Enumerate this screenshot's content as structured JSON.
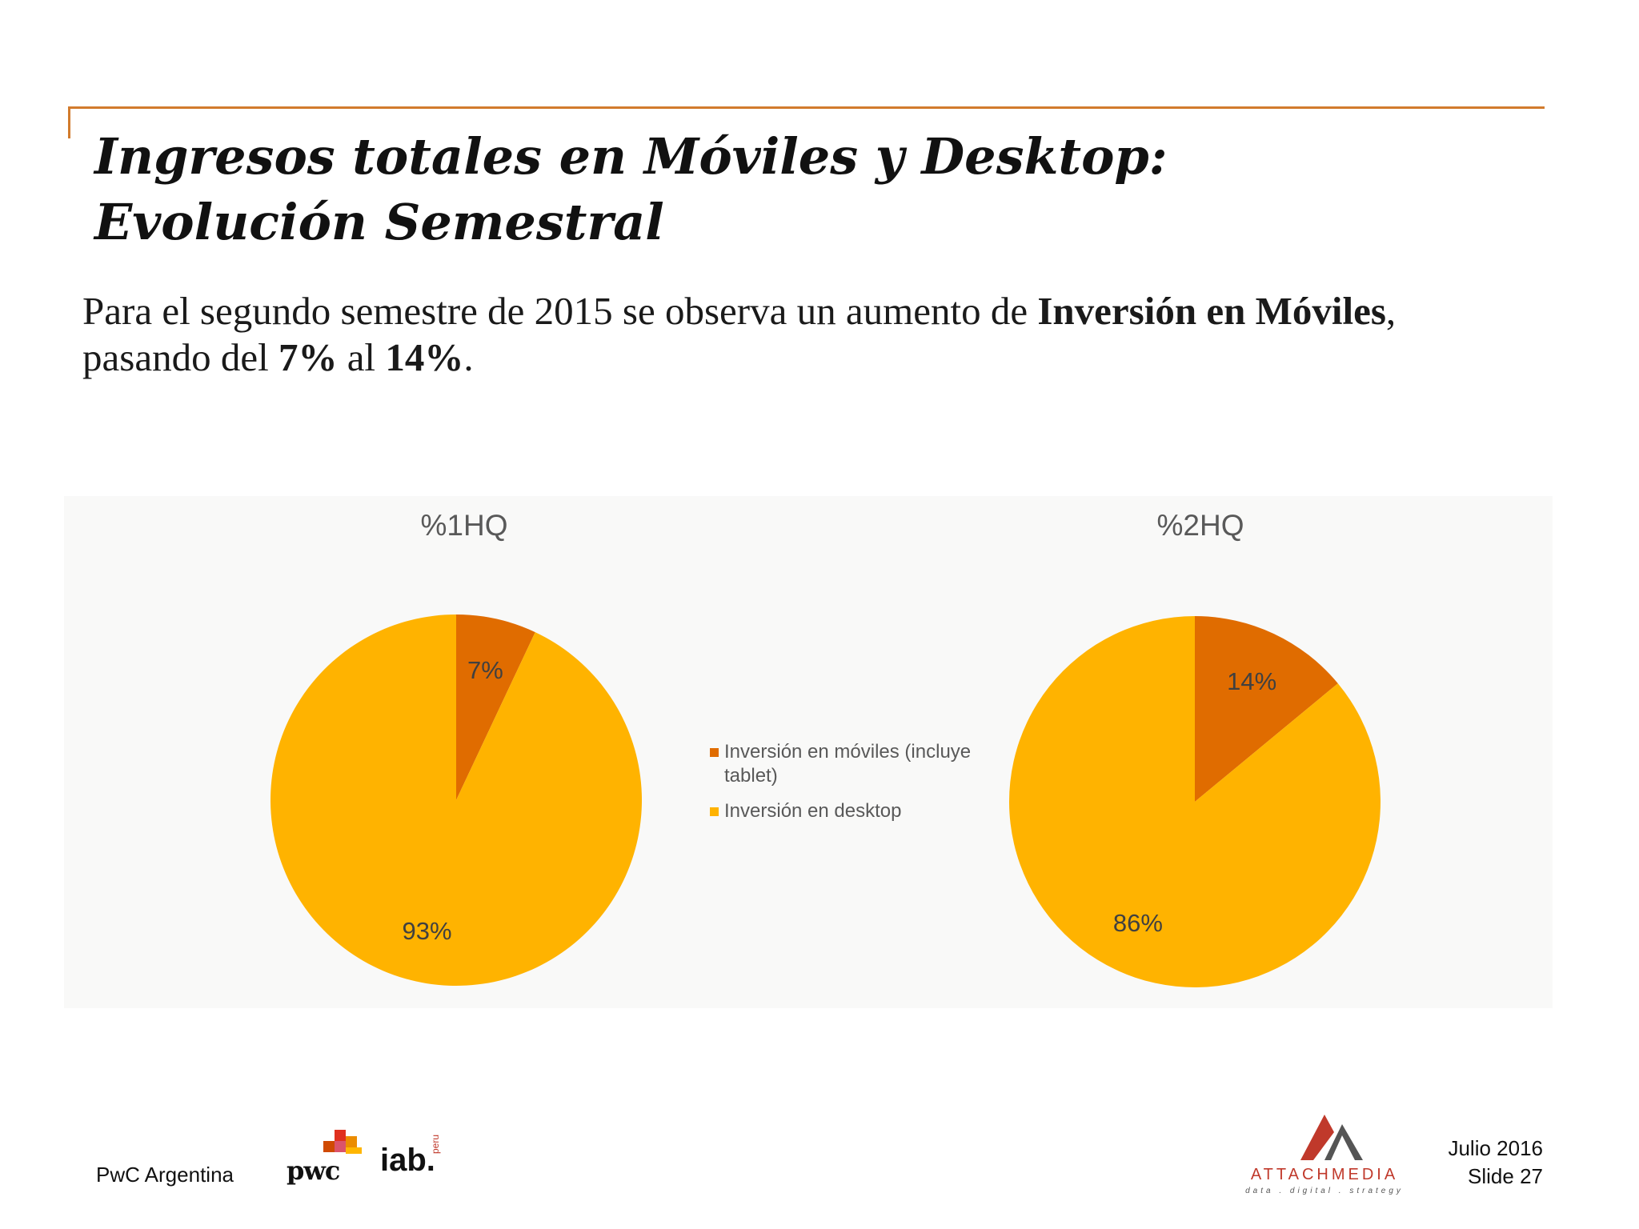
{
  "title": {
    "line1": "Ingresos totales en Móviles y Desktop:",
    "line2": "Evolución Semestral"
  },
  "intro": {
    "part1": "Para el segundo semestre de 2015 se observa un aumento de ",
    "bold1": "Inversión en Móviles",
    "part2": ", pasando del ",
    "bold2": "7%",
    "part3": " al ",
    "bold3": "14%",
    "part4": "."
  },
  "chart_data": [
    {
      "type": "pie",
      "title": "%1HQ",
      "categories": [
        "Inversión en móviles (incluye tablet)",
        "Inversión en desktop"
      ],
      "values": [
        7,
        93
      ],
      "labels": [
        "7%",
        "93%"
      ],
      "colors": [
        "#e06c00",
        "#ffb300"
      ]
    },
    {
      "type": "pie",
      "title": "%2HQ",
      "categories": [
        "Inversión en móviles (incluye tablet)",
        "Inversión en desktop"
      ],
      "values": [
        14,
        86
      ],
      "labels": [
        "14%",
        "86%"
      ],
      "colors": [
        "#e06c00",
        "#ffb300"
      ]
    }
  ],
  "legend": {
    "placement": "center",
    "items": [
      {
        "label": "Inversión en móviles (incluye tablet)",
        "color": "#e06c00"
      },
      {
        "label": "Inversión en desktop",
        "color": "#ffb300"
      }
    ]
  },
  "footer": {
    "company": "PwC Argentina",
    "date": "Julio 2016",
    "slide": "Slide 27"
  },
  "logos": {
    "pwc": "pwc",
    "iab": "iab.",
    "iab_sub": "peru",
    "attach_name": "ATTACHMEDIA",
    "attach_tag": "data . digital . strategy"
  },
  "colors": {
    "accent_line": "#d27b2d",
    "mobile": "#e06c00",
    "desktop": "#ffb300"
  }
}
